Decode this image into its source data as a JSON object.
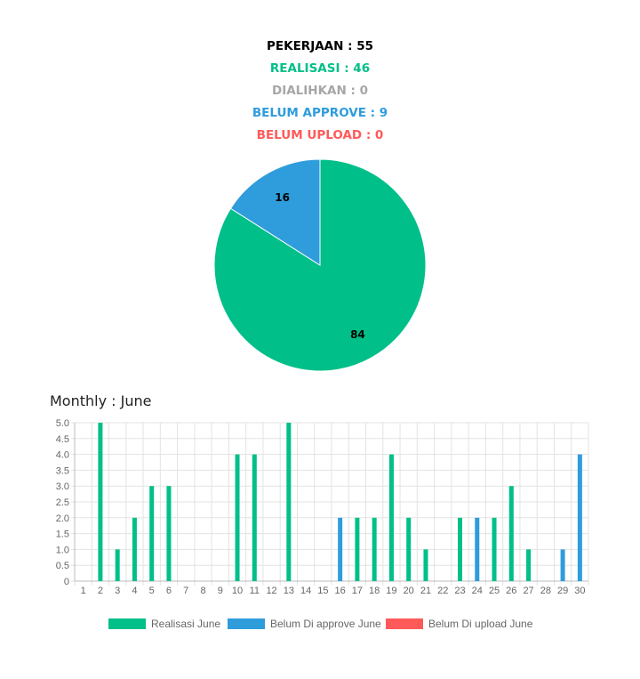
{
  "stats": [
    {
      "text": "PEKERJAAN : 55",
      "color": "#000000"
    },
    {
      "text": "REALISASI : 46",
      "color": "#00bf89"
    },
    {
      "text": "DIALIHKAN : 0",
      "color": "#a6a6a6"
    },
    {
      "text": "BELUM APPROVE : 9",
      "color": "#2f9cdc"
    },
    {
      "text": "BELUM UPLOAD : 0",
      "color": "#ff5a5a"
    }
  ],
  "chart_data": [
    {
      "type": "pie",
      "slices": [
        {
          "value": 84,
          "label": "84",
          "color": "#00bf89"
        },
        {
          "value": 16,
          "label": "16",
          "color": "#2f9cdc"
        }
      ]
    },
    {
      "type": "bar",
      "title": "Monthly : June",
      "categories": [
        "1",
        "2",
        "3",
        "4",
        "5",
        "6",
        "7",
        "8",
        "9",
        "10",
        "11",
        "12",
        "13",
        "14",
        "15",
        "16",
        "17",
        "18",
        "19",
        "20",
        "21",
        "22",
        "23",
        "24",
        "25",
        "26",
        "27",
        "28",
        "29",
        "30"
      ],
      "series": [
        {
          "name": "Realisasi June",
          "color": "#00bf89",
          "values": [
            0,
            5,
            1,
            2,
            3,
            3,
            0,
            0,
            0,
            4,
            4,
            0,
            5,
            0,
            0,
            0,
            2,
            2,
            4,
            2,
            1,
            0,
            2,
            0,
            2,
            3,
            1,
            0,
            0,
            0
          ]
        },
        {
          "name": "Belum Di approve June",
          "color": "#2f9cdc",
          "values": [
            0,
            0,
            0,
            0,
            0,
            0,
            0,
            0,
            0,
            0,
            0,
            0,
            0,
            0,
            0,
            2,
            0,
            0,
            0,
            0,
            0,
            0,
            0,
            2,
            0,
            0,
            0,
            0,
            1,
            4
          ]
        },
        {
          "name": "Belum Di upload June",
          "color": "#ff5a5a",
          "values": [
            0,
            0,
            0,
            0,
            0,
            0,
            0,
            0,
            0,
            0,
            0,
            0,
            0,
            0,
            0,
            0,
            0,
            0,
            0,
            0,
            0,
            0,
            0,
            0,
            0,
            0,
            0,
            0,
            0,
            0
          ]
        }
      ],
      "y_ticks": [
        "5.0",
        "4.5",
        "4.0",
        "3.5",
        "3.0",
        "2.5",
        "2.0",
        "1.5",
        "1.0",
        "0.5",
        "0"
      ],
      "ylim": [
        0,
        5
      ],
      "grid": true,
      "legend_position": "bottom"
    }
  ]
}
